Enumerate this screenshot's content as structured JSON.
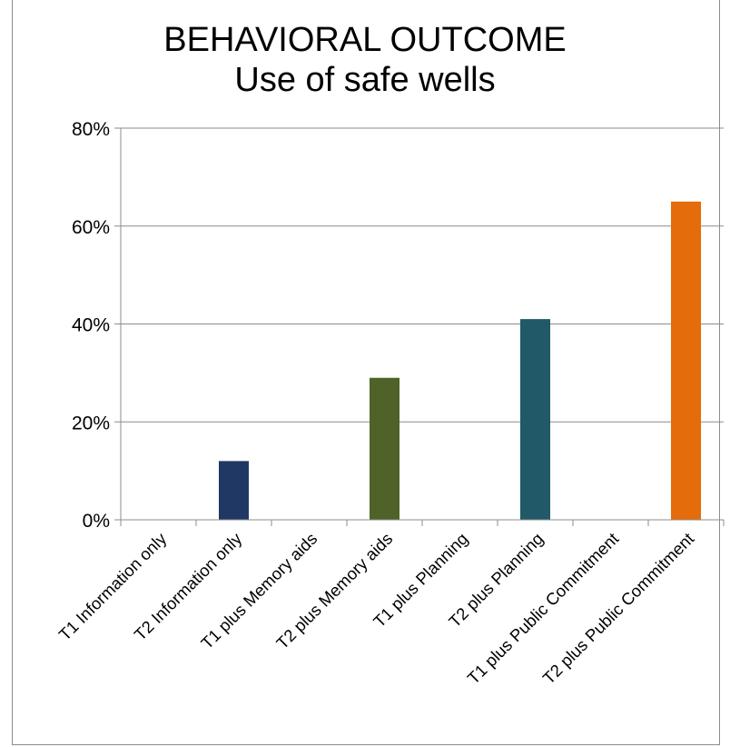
{
  "chart_data": {
    "type": "bar",
    "title": "BEHAVIORAL OUTCOME",
    "subtitle": "Use of safe wells",
    "xlabel": "",
    "ylabel": "",
    "categories": [
      "T1 Information only",
      "T2 Information only",
      "T1 plus Memory aids",
      "T2 plus Memory aids",
      "T1 plus Planning",
      "T2 plus Planning",
      "T1 plus Public Commitment",
      "T2 plus Public Commitment"
    ],
    "values": [
      0,
      0.12,
      0,
      0.29,
      0,
      0.41,
      0,
      0.65
    ],
    "bar_colors": [
      "#1F3864",
      "#1F3864",
      "#4F6228",
      "#4F6228",
      "#215968",
      "#215968",
      "#E46C0A",
      "#E46C0A"
    ],
    "ylim": [
      0,
      0.8
    ],
    "yticks": [
      {
        "value": 0,
        "label": "0%"
      },
      {
        "value": 0.2,
        "label": "20%"
      },
      {
        "value": 0.4,
        "label": "40%"
      },
      {
        "value": 0.6,
        "label": "60%"
      },
      {
        "value": 0.8,
        "label": "80%"
      }
    ],
    "grid": true,
    "legend": "none",
    "colors": {
      "gridline": "#8c8c8c",
      "axis": "#8c8c8c"
    }
  }
}
